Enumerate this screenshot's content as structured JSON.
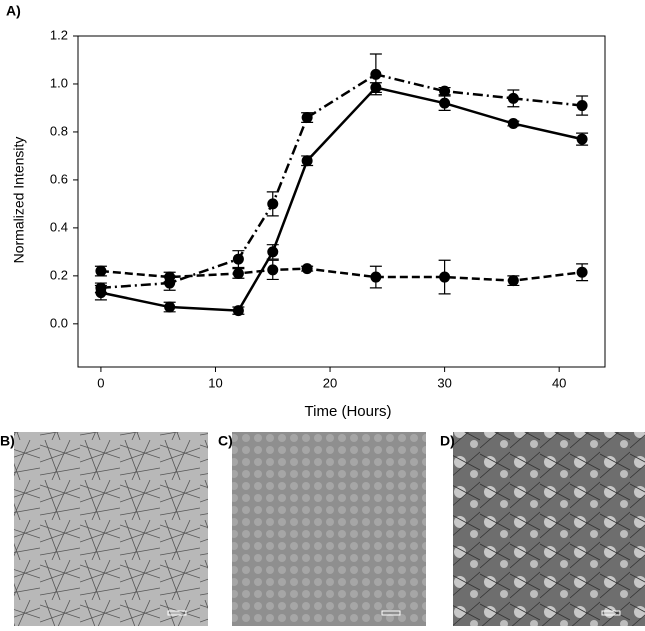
{
  "chart_data": {
    "type": "line",
    "panel_label": "A)",
    "xlabel": "Time (Hours)",
    "ylabel": "Normalized Intensity",
    "xlim": [
      -2,
      44
    ],
    "xticks": [
      0,
      10,
      20,
      30,
      40
    ],
    "ylim": [
      -0.18,
      1.2
    ],
    "yticks": [
      {
        "value": 0,
        "label": "0.0"
      },
      {
        "value": 0.2,
        "label": "0.2"
      },
      {
        "value": 0.4,
        "label": "0.4"
      },
      {
        "value": 0.6,
        "label": "0.6"
      },
      {
        "value": 0.8,
        "label": "0.8"
      },
      {
        "value": 1,
        "label": "1.0"
      },
      {
        "value": 1.2,
        "label": "1.2"
      }
    ],
    "x": [
      0,
      6,
      12,
      15,
      18,
      24,
      30,
      36,
      42
    ],
    "series": [
      {
        "color": "#000000",
        "line_style": "solid",
        "values": [
          0.13,
          0.07,
          0.055,
          0.3,
          0.68,
          0.985,
          0.92,
          0.835,
          0.77
        ],
        "errors": [
          0.03,
          0.02,
          0.015,
          0.03,
          0.02,
          0.02,
          0.03,
          0.01,
          0.025
        ]
      },
      {
        "color": "#000000",
        "line_style": "dashdot",
        "values": [
          0.15,
          0.17,
          0.27,
          0.5,
          0.86,
          1.04,
          0.97,
          0.94,
          0.91
        ],
        "errors": [
          0.02,
          0.03,
          0.035,
          0.05,
          0.02,
          0.085,
          0.015,
          0.035,
          0.04
        ]
      },
      {
        "color": "#000000",
        "line_style": "dashed",
        "values": [
          0.22,
          0.195,
          0.21,
          0.225,
          0.23,
          0.195,
          0.195,
          0.18,
          0.215
        ],
        "errors": [
          0.02,
          0.02,
          0.02,
          0.04,
          0.01,
          0.045,
          0.07,
          0.02,
          0.035
        ]
      }
    ]
  },
  "images": [
    {
      "label": "B)"
    },
    {
      "label": "C)"
    },
    {
      "label": "D)"
    }
  ]
}
